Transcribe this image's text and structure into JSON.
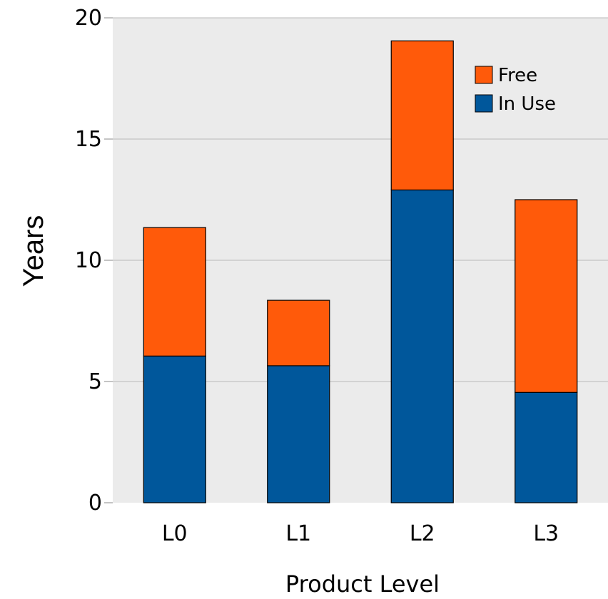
{
  "chart_data": {
    "type": "bar",
    "stacked": true,
    "categories": [
      "L0",
      "L1",
      "L2",
      "L3"
    ],
    "series": [
      {
        "name": "In Use",
        "color": "#00579b",
        "values": [
          6.05,
          5.65,
          12.9,
          4.55
        ]
      },
      {
        "name": "Free",
        "color": "#ff5a0a",
        "values": [
          5.3,
          2.7,
          6.15,
          7.95
        ]
      }
    ],
    "xlabel": "Product Level",
    "ylabel": "Years",
    "ylim": [
      0,
      20
    ],
    "yticks": [
      0,
      5,
      10,
      15,
      20
    ],
    "grid": true,
    "legend": {
      "position": "top-right",
      "order": [
        "Free",
        "In Use"
      ]
    },
    "plot_background": "#ebebeb"
  }
}
